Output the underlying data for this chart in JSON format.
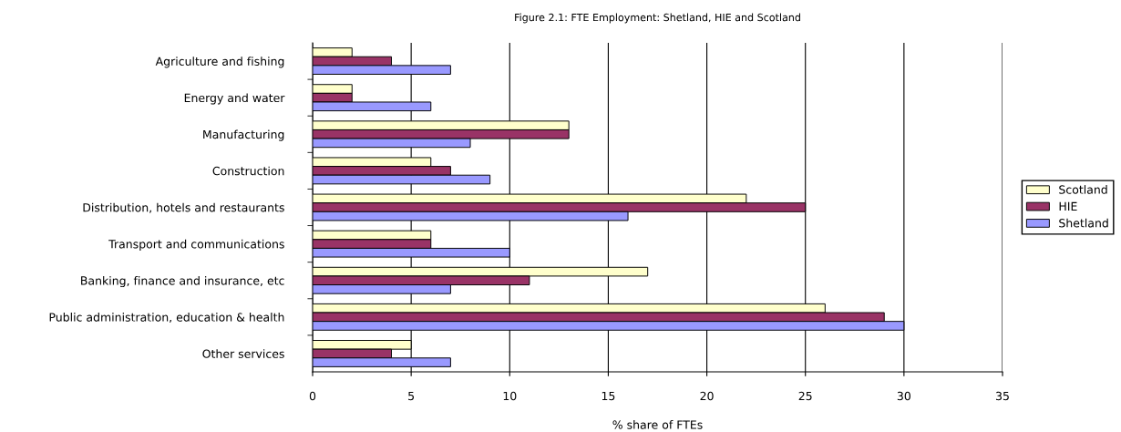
{
  "chart_data": {
    "type": "bar",
    "orientation": "horizontal",
    "title": "Figure 2.1: FTE Employment: Shetland, HIE and Scotland",
    "xlabel": "% share of FTEs",
    "categories": [
      "Agriculture and fishing",
      "Energy and water",
      "Manufacturing",
      "Construction",
      "Distribution, hotels and restaurants",
      "Transport and communications",
      "Banking, finance and insurance, etc",
      "Public administration, education & health",
      "Other services"
    ],
    "series": [
      {
        "name": "Scotland",
        "color": "#ffffcc",
        "values": [
          2,
          2,
          13,
          6,
          22,
          6,
          17,
          26,
          5
        ]
      },
      {
        "name": "HIE",
        "color": "#993366",
        "values": [
          4,
          2,
          13,
          7,
          25,
          6,
          11,
          29,
          4
        ]
      },
      {
        "name": "Shetland",
        "color": "#9999ff",
        "values": [
          7,
          6,
          8,
          9,
          16,
          10,
          7,
          30,
          7
        ]
      }
    ],
    "xlim": [
      0,
      35
    ],
    "xticks": [
      0,
      5,
      10,
      15,
      20,
      25,
      30,
      35
    ],
    "grid": "x",
    "legend": "right"
  }
}
